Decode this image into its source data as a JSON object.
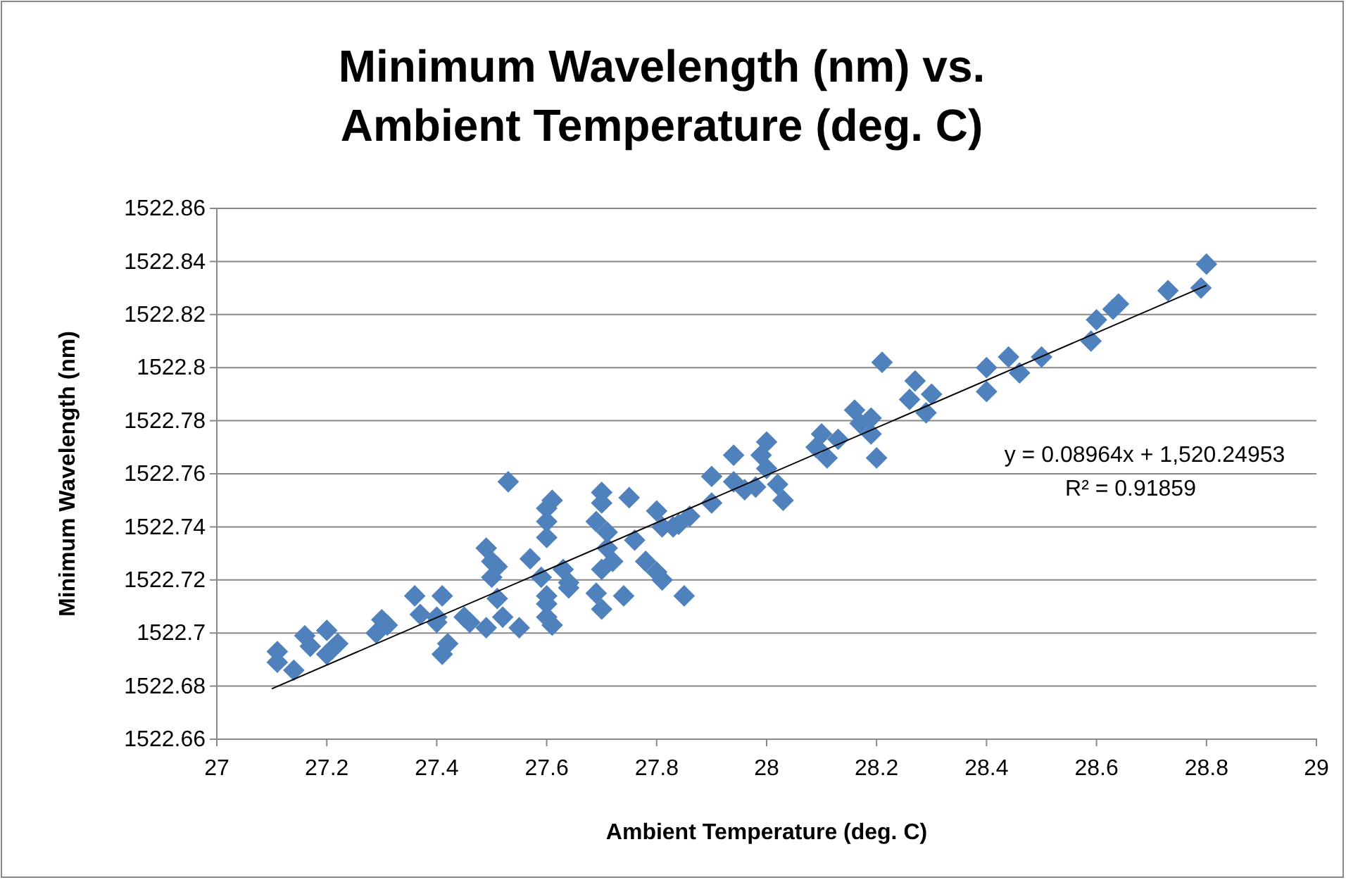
{
  "chart_data": {
    "type": "scatter",
    "title": "Minimum Wavelength (nm) vs. Ambient Temperature (deg. C)",
    "xlabel": "Ambient Temperature  (deg. C)",
    "ylabel": "Minimum Wavelength (nm)",
    "xlim": [
      27,
      29
    ],
    "xticks": [
      27,
      27.2,
      27.4,
      27.6,
      27.8,
      28,
      28.2,
      28.4,
      28.6,
      28.8,
      29
    ],
    "ylim": [
      1522.66,
      1522.86
    ],
    "yticks": [
      1522.66,
      1522.68,
      1522.7,
      1522.72,
      1522.74,
      1522.76,
      1522.78,
      1522.8,
      1522.82,
      1522.84,
      1522.86
    ],
    "grid": "y",
    "marker": "diamond",
    "series": [
      {
        "color": "#4f81bd",
        "x": [
          27.11,
          27.11,
          27.14,
          27.16,
          27.17,
          27.2,
          27.2,
          27.21,
          27.22,
          27.29,
          27.3,
          27.31,
          27.36,
          27.37,
          27.4,
          27.41,
          27.4,
          27.41,
          27.42,
          27.45,
          27.46,
          27.49,
          27.49,
          27.5,
          27.5,
          27.51,
          27.51,
          27.52,
          27.53,
          27.55,
          27.57,
          27.59,
          27.6,
          27.6,
          27.6,
          27.6,
          27.61,
          27.6,
          27.61,
          27.6,
          27.63,
          27.64,
          27.64,
          27.69,
          27.7,
          27.7,
          27.69,
          27.7,
          27.7,
          27.71,
          27.71,
          27.72,
          27.74,
          27.75,
          27.76,
          27.78,
          27.8,
          27.81,
          27.8,
          27.81,
          27.83,
          27.84,
          27.85,
          27.86,
          27.9,
          27.9,
          27.94,
          27.94,
          27.96,
          27.98,
          27.99,
          28,
          28,
          28.02,
          28.03,
          28.09,
          28.1,
          28.11,
          28.13,
          28.16,
          28.17,
          28.19,
          28.19,
          28.2,
          28.21,
          28.26,
          28.27,
          28.29,
          28.3,
          28.4,
          28.4,
          28.44,
          28.46,
          28.5,
          28.59,
          28.6,
          28.63,
          28.64,
          28.73,
          28.79,
          28.8
        ],
        "values": [
          1522.693,
          1522.689,
          1522.686,
          1522.699,
          1522.695,
          1522.701,
          1522.692,
          1522.694,
          1522.696,
          1522.7,
          1522.705,
          1522.703,
          1522.714,
          1522.707,
          1522.704,
          1522.714,
          1522.706,
          1522.692,
          1522.696,
          1522.706,
          1522.704,
          1522.702,
          1522.732,
          1522.721,
          1522.727,
          1522.725,
          1522.713,
          1522.706,
          1522.757,
          1522.702,
          1522.728,
          1522.721,
          1522.706,
          1522.742,
          1522.736,
          1522.747,
          1522.75,
          1522.714,
          1522.703,
          1522.711,
          1522.724,
          1522.717,
          1522.719,
          1522.715,
          1522.709,
          1522.724,
          1522.742,
          1522.749,
          1522.753,
          1522.732,
          1522.738,
          1522.727,
          1522.714,
          1522.751,
          1522.735,
          1522.727,
          1522.723,
          1522.72,
          1522.746,
          1522.74,
          1522.74,
          1522.741,
          1522.714,
          1522.744,
          1522.749,
          1522.759,
          1522.767,
          1522.757,
          1522.754,
          1522.755,
          1522.767,
          1522.772,
          1522.762,
          1522.756,
          1522.75,
          1522.77,
          1522.775,
          1522.766,
          1522.773,
          1522.784,
          1522.779,
          1522.775,
          1522.781,
          1522.766,
          1522.802,
          1522.788,
          1522.795,
          1522.783,
          1522.79,
          1522.8,
          1522.791,
          1522.804,
          1522.798,
          1522.804,
          1522.81,
          1522.818,
          1522.822,
          1522.824,
          1522.829,
          1522.83,
          1522.839
        ]
      },
      {
        "type": "line",
        "color": "#000000",
        "marker": "none",
        "x": [
          27.1,
          28.8
        ],
        "values": [
          1522.679,
          1522.831
        ]
      }
    ],
    "annotations": [
      "y = 0.08964x + 1,520.24953",
      "R² = 0.91859"
    ]
  }
}
